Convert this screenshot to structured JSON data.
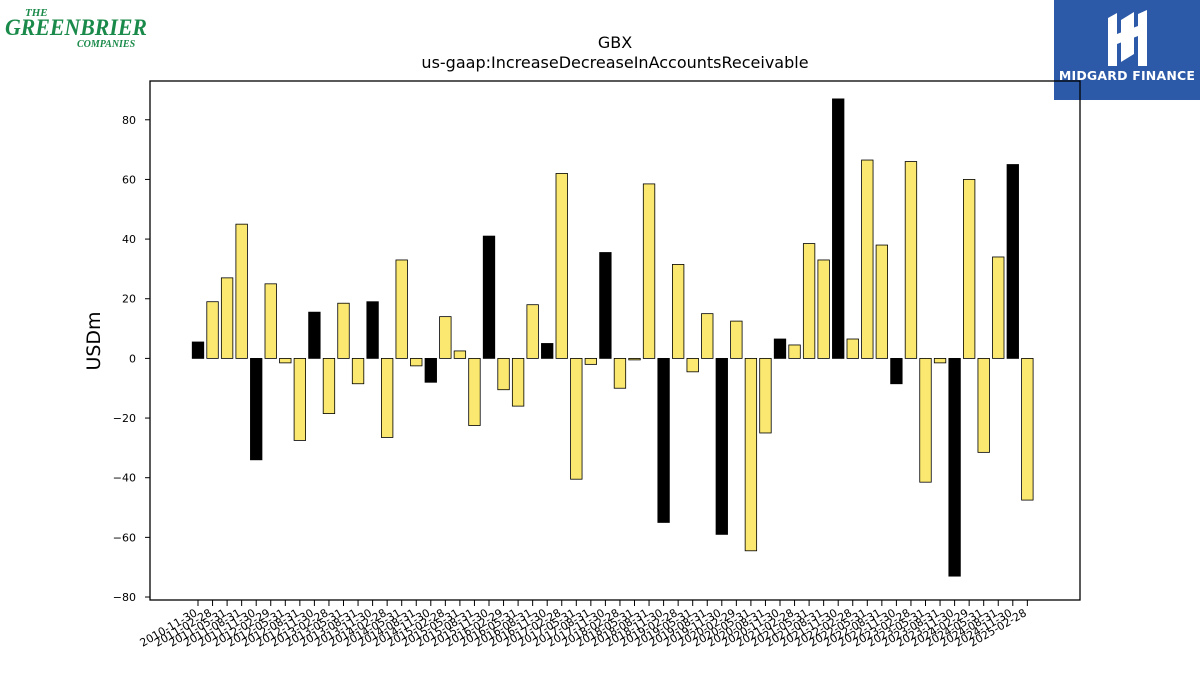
{
  "logos": {
    "left": {
      "line1": "THE",
      "line2": "GREENBRIER",
      "line3": "COMPANIES",
      "color": "#1a8a4a"
    },
    "right": {
      "text": "MIDGARD FINANCE",
      "bg_color": "#2d5aa8"
    }
  },
  "chart_data": {
    "type": "bar",
    "title": "GBX",
    "subtitle": "us-gaap:IncreaseDecreaseInAccountsReceivable",
    "ylabel": "USDm",
    "xlabel": "",
    "ylim": [
      -81,
      93
    ],
    "yticks": [
      -80,
      -60,
      -40,
      -20,
      0,
      20,
      40,
      60,
      80
    ],
    "colors": {
      "quarter": "#fbe870",
      "fiscal_year": "#000000"
    },
    "categories": [
      "2010-11-30",
      "2011-02-28",
      "2011-05-31",
      "2011-08-31",
      "2011-11-30",
      "2012-02-29",
      "2012-05-31",
      "2012-08-31",
      "2012-11-30",
      "2013-02-28",
      "2013-05-31",
      "2013-08-31",
      "2013-11-30",
      "2014-02-28",
      "2014-05-31",
      "2014-08-31",
      "2014-11-30",
      "2015-02-28",
      "2015-05-31",
      "2015-08-31",
      "2015-11-30",
      "2016-02-29",
      "2016-05-31",
      "2016-08-31",
      "2016-11-30",
      "2017-02-28",
      "2017-05-31",
      "2017-08-31",
      "2017-11-30",
      "2018-02-28",
      "2018-05-31",
      "2018-08-31",
      "2018-11-30",
      "2019-02-28",
      "2019-05-31",
      "2019-08-31",
      "2019-11-30",
      "2020-02-29",
      "2020-05-31",
      "2020-08-31",
      "2020-11-30",
      "2021-02-28",
      "2021-05-31",
      "2021-08-31",
      "2021-11-30",
      "2022-02-28",
      "2022-05-31",
      "2022-08-31",
      "2022-11-30",
      "2023-02-28",
      "2023-05-31",
      "2023-08-31",
      "2023-11-30",
      "2024-02-29",
      "2024-05-31",
      "2024-08-31",
      "2024-11-30",
      "2025-02-28"
    ],
    "values": [
      5.5,
      19,
      27,
      45,
      -34,
      25,
      -1.5,
      -27.5,
      15.5,
      -18.5,
      18.5,
      -8.5,
      19,
      -26.5,
      33,
      -2.5,
      -8,
      14,
      2.5,
      -22.5,
      41,
      -10.5,
      -16,
      18,
      5,
      62,
      -40.5,
      -2,
      35.5,
      -10,
      -0.5,
      58.5,
      -55,
      31.5,
      -4.5,
      15,
      -59,
      12.5,
      -64.5,
      -25,
      6.5,
      4.5,
      38.5,
      33,
      87,
      6.5,
      66.5,
      38,
      -8.5,
      66,
      -41.5,
      -1.5,
      -73,
      60,
      -31.5,
      34,
      65,
      -47.5
    ],
    "fiscal_year_end": [
      true,
      false,
      false,
      false,
      true,
      false,
      false,
      false,
      true,
      false,
      false,
      false,
      true,
      false,
      false,
      false,
      true,
      false,
      false,
      false,
      true,
      false,
      false,
      false,
      true,
      false,
      false,
      false,
      true,
      false,
      false,
      false,
      true,
      false,
      false,
      false,
      true,
      false,
      false,
      false,
      true,
      false,
      false,
      false,
      true,
      false,
      false,
      false,
      true,
      false,
      false,
      false,
      true,
      false,
      false,
      false,
      true,
      false
    ]
  }
}
